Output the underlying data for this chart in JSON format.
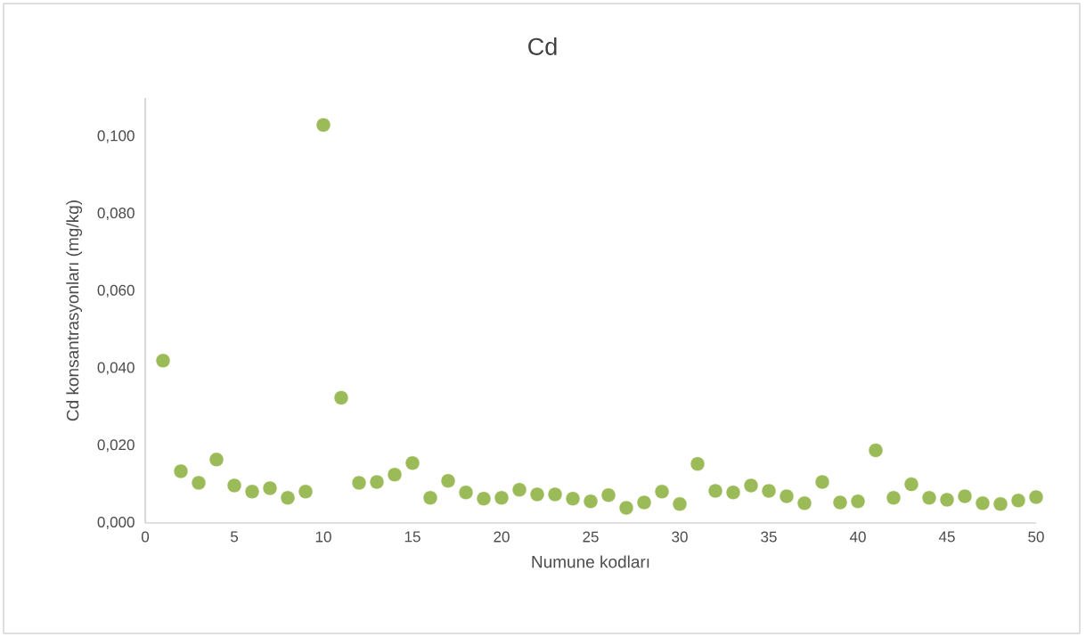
{
  "chart_data": {
    "type": "scatter",
    "title": "Cd",
    "xlabel": "Numune kodları",
    "ylabel": "Cd konsantrasyonları (mg/kg)",
    "x": [
      1,
      2,
      3,
      4,
      5,
      6,
      7,
      8,
      9,
      10,
      11,
      12,
      13,
      14,
      15,
      16,
      17,
      18,
      19,
      20,
      21,
      22,
      23,
      24,
      25,
      26,
      27,
      28,
      29,
      30,
      31,
      32,
      33,
      34,
      35,
      36,
      37,
      38,
      39,
      40,
      41,
      42,
      43,
      44,
      45,
      46,
      47,
      48,
      49,
      50
    ],
    "series": [
      {
        "color": "#9bbb59",
        "values": [
          0.042,
          0.0134,
          0.0104,
          0.0164,
          0.0097,
          0.0081,
          0.009,
          0.0065,
          0.0081,
          0.103,
          0.0324,
          0.0104,
          0.0106,
          0.0125,
          0.0155,
          0.0065,
          0.0109,
          0.0079,
          0.0063,
          0.0065,
          0.0086,
          0.0074,
          0.0074,
          0.0063,
          0.0056,
          0.0072,
          0.0039,
          0.0053,
          0.0081,
          0.0049,
          0.0153,
          0.0083,
          0.0079,
          0.0097,
          0.0083,
          0.0069,
          0.0051,
          0.0106,
          0.0053,
          0.0056,
          0.0188,
          0.0065,
          0.01,
          0.0065,
          0.006,
          0.0069,
          0.0051,
          0.0049,
          0.0058,
          0.0067
        ]
      }
    ],
    "xlim": [
      0,
      50
    ],
    "xticks": [
      0,
      5,
      10,
      15,
      20,
      25,
      30,
      35,
      40,
      45,
      50
    ],
    "ylim": [
      0,
      0.11
    ],
    "yticks": [
      {
        "value": 0,
        "label": "0,000"
      },
      {
        "value": 0.02,
        "label": "0,020"
      },
      {
        "value": 0.04,
        "label": "0,040"
      },
      {
        "value": 0.06,
        "label": "0,060"
      },
      {
        "value": 0.08,
        "label": "0,080"
      },
      {
        "value": 0.1,
        "label": "0,100"
      }
    ],
    "grid": false,
    "marker": "circle"
  }
}
